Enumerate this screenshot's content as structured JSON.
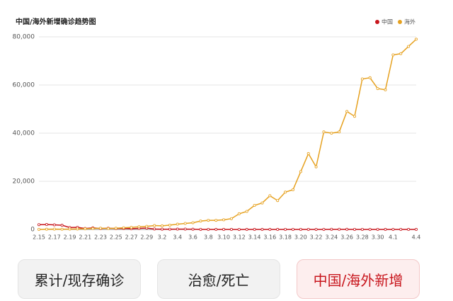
{
  "chart_data": {
    "type": "line",
    "title": "中国/海外新增确诊趋势图",
    "categories": [
      "2.15",
      null,
      "2.17",
      null,
      "2.19",
      null,
      "2.21",
      null,
      "2.23",
      null,
      "2.25",
      null,
      "2.27",
      null,
      "2.29",
      null,
      "3.2",
      null,
      "3.4",
      null,
      "3.6",
      null,
      "3.8",
      null,
      "3.10",
      null,
      "3.12",
      null,
      "3.14",
      null,
      "3.16",
      null,
      "3.18",
      null,
      "3.20",
      null,
      "3.22",
      null,
      "3.24",
      null,
      "3.26",
      null,
      "3.28",
      null,
      "3.30",
      null,
      "4.1",
      null,
      null,
      "4.4"
    ],
    "series": [
      {
        "name": "中国",
        "color": "#c8161d",
        "values": [
          2000,
          2050,
          1900,
          1750,
          820,
          890,
          400,
          650,
          400,
          500,
          400,
          430,
          330,
          430,
          570,
          200,
          125,
          120,
          140,
          145,
          100,
          45,
          40,
          20,
          25,
          25,
          15,
          20,
          25,
          20,
          30,
          30,
          35,
          40,
          40,
          45,
          45,
          40,
          80,
          75,
          65,
          55,
          45,
          55,
          45,
          30,
          35,
          40,
          30,
          30
        ]
      },
      {
        "name": "海外",
        "color": "#e6a11f",
        "values": [
          50,
          100,
          150,
          100,
          150,
          200,
          300,
          400,
          500,
          400,
          500,
          700,
          900,
          1100,
          1300,
          1600,
          1500,
          1800,
          2200,
          2500,
          2800,
          3500,
          3800,
          3800,
          4000,
          4500,
          6500,
          7500,
          10000,
          11000,
          14000,
          12000,
          15500,
          16500,
          24000,
          31500,
          26000,
          40500,
          40000,
          40500,
          49000,
          47000,
          62500,
          63000,
          58500,
          58000,
          72500,
          73000,
          76000,
          79000
        ]
      }
    ],
    "ylim": [
      0,
      80000
    ],
    "yticks": [
      0,
      {
        "value": 20000,
        "label": "20,000"
      },
      {
        "value": 40000,
        "label": "40,000"
      },
      {
        "value": 60000,
        "label": "60,000"
      },
      {
        "value": 80000,
        "label": "80,000"
      }
    ],
    "grid": true,
    "legend": "top-right"
  },
  "tabs": [
    "累计/现存确诊",
    "治愈/死亡",
    "中国/海外新增"
  ],
  "active_tab": 2
}
